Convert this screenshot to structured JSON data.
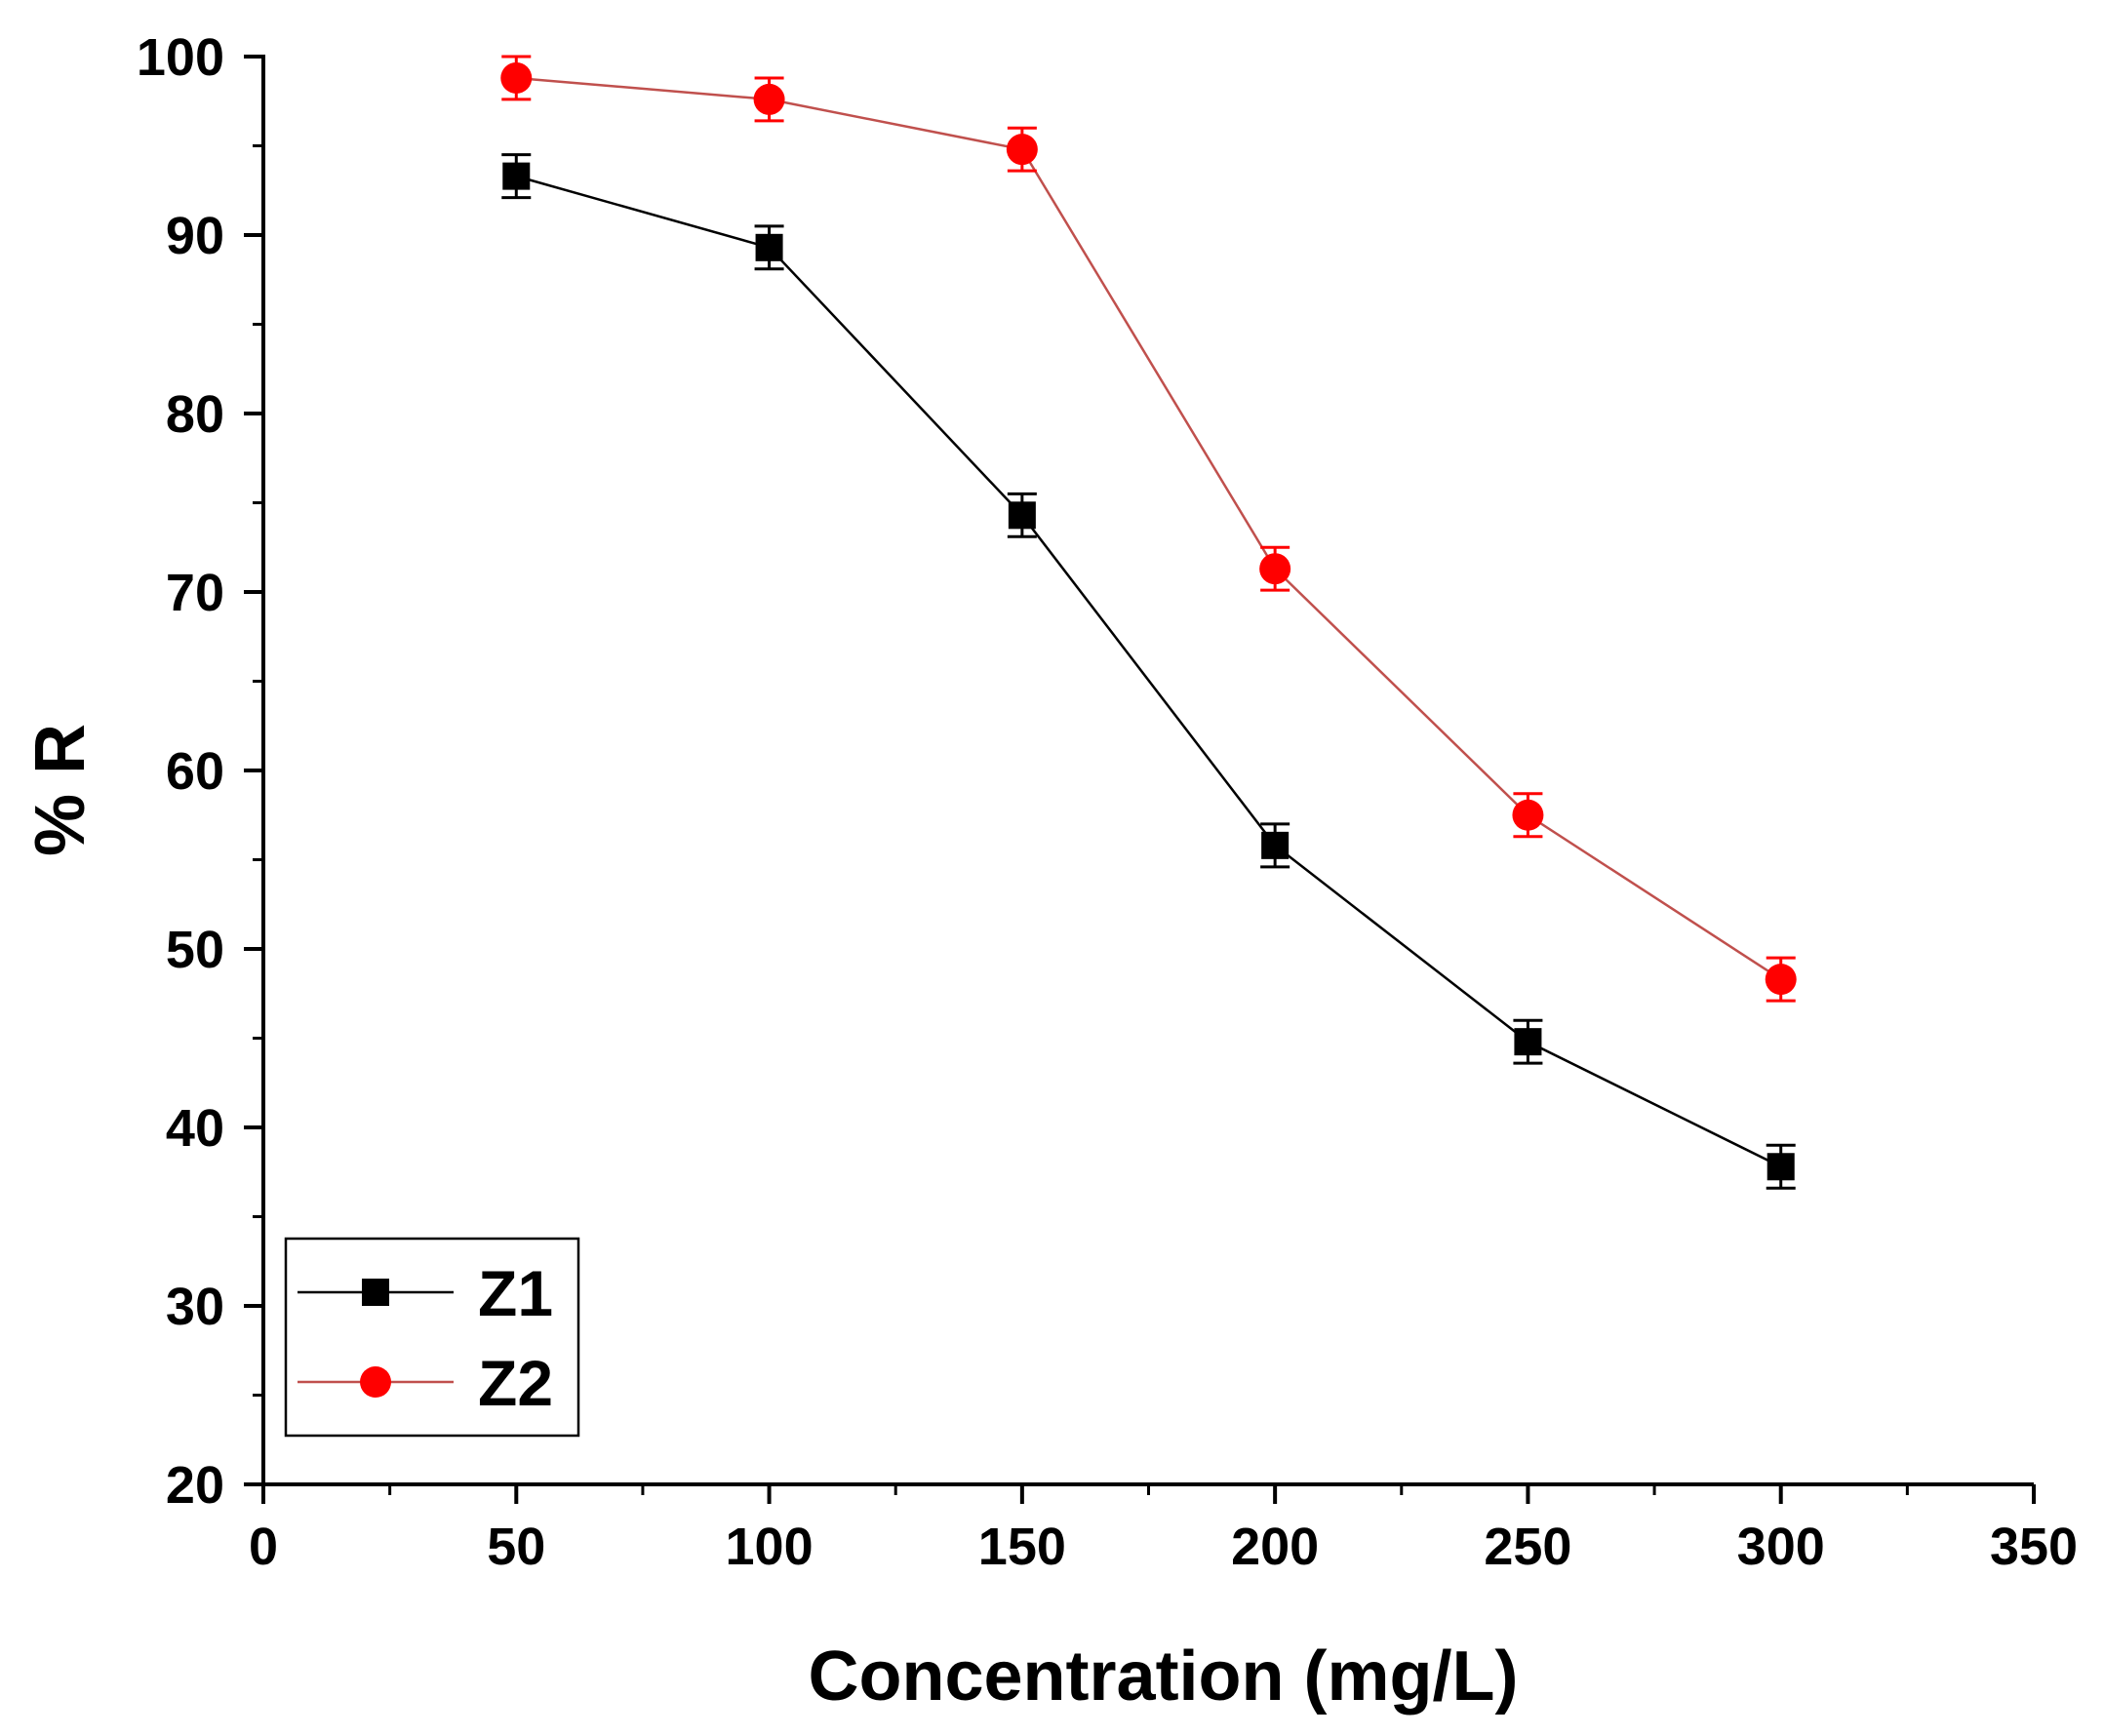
{
  "chart_data": {
    "type": "line",
    "title": "",
    "xlabel": "Concentration (mg/L)",
    "ylabel": "% R",
    "xlim": [
      0,
      350
    ],
    "ylim": [
      20,
      100
    ],
    "x_ticks": [
      0,
      50,
      100,
      150,
      200,
      250,
      300,
      350
    ],
    "y_ticks": [
      20,
      30,
      40,
      50,
      60,
      70,
      80,
      90,
      100
    ],
    "grid": false,
    "legend_position": "bottom-left",
    "series": [
      {
        "name": "Z1",
        "color": "#000000",
        "line_color": "#000000",
        "marker": "square",
        "x": [
          50,
          100,
          150,
          200,
          250,
          300
        ],
        "values": [
          93.3,
          89.3,
          74.3,
          55.8,
          44.8,
          37.8
        ],
        "error": [
          1.2,
          1.2,
          1.2,
          1.2,
          1.2,
          1.2
        ]
      },
      {
        "name": "Z2",
        "color": "#ff0000",
        "line_color": "#c0504d",
        "marker": "circle",
        "x": [
          50,
          100,
          150,
          200,
          250,
          300
        ],
        "values": [
          98.8,
          97.6,
          94.8,
          71.3,
          57.5,
          48.3
        ],
        "error": [
          1.2,
          1.2,
          1.2,
          1.2,
          1.2,
          1.2
        ]
      }
    ]
  }
}
